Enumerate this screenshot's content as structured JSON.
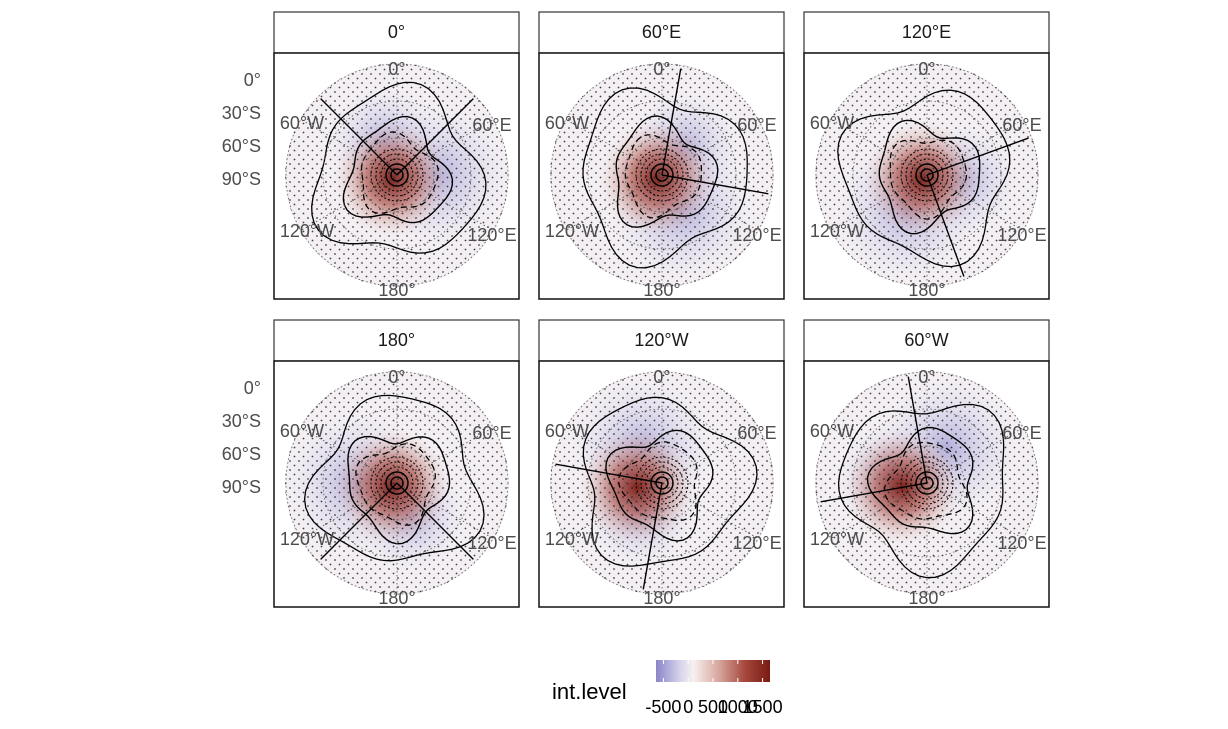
{
  "chart_data": {
    "type": "heatmap",
    "projection": "south-polar stereographic, faceted",
    "panels": [
      {
        "title": "0°",
        "line_angles_deg": [
          -45,
          45
        ]
      },
      {
        "title": "60°E",
        "line_angles_deg": [
          10,
          100
        ]
      },
      {
        "title": "120°E",
        "line_angles_deg": [
          70,
          160
        ]
      },
      {
        "title": "180°",
        "line_angles_deg": [
          135,
          225
        ]
      },
      {
        "title": "120°W",
        "line_angles_deg": [
          190,
          280
        ]
      },
      {
        "title": "60°W",
        "line_angles_deg": [
          -10,
          260
        ]
      }
    ],
    "lat_labels": [
      "0°",
      "30°S",
      "60°S",
      "90°S"
    ],
    "lon_labels": {
      "top": "0°",
      "upper_left": "60°W",
      "upper_right": "60°E",
      "lower_left": "120°W",
      "lower_right": "120°E",
      "bottom": "180°"
    },
    "legend": {
      "title": "int.level",
      "tick_labels": [
        "-500",
        "0",
        "500",
        "1000",
        "1500"
      ],
      "tick_values": [
        -500,
        0,
        500,
        1000,
        1500
      ],
      "range": [
        -650,
        1650
      ],
      "colors": {
        "low": "#8a85c8",
        "mid": "#f7f0ee",
        "high": "#7a1a12"
      },
      "position": "bottom"
    },
    "grid": true,
    "stippling": "significance dots over most of the domain",
    "contours": "black solid and dashed lines"
  }
}
